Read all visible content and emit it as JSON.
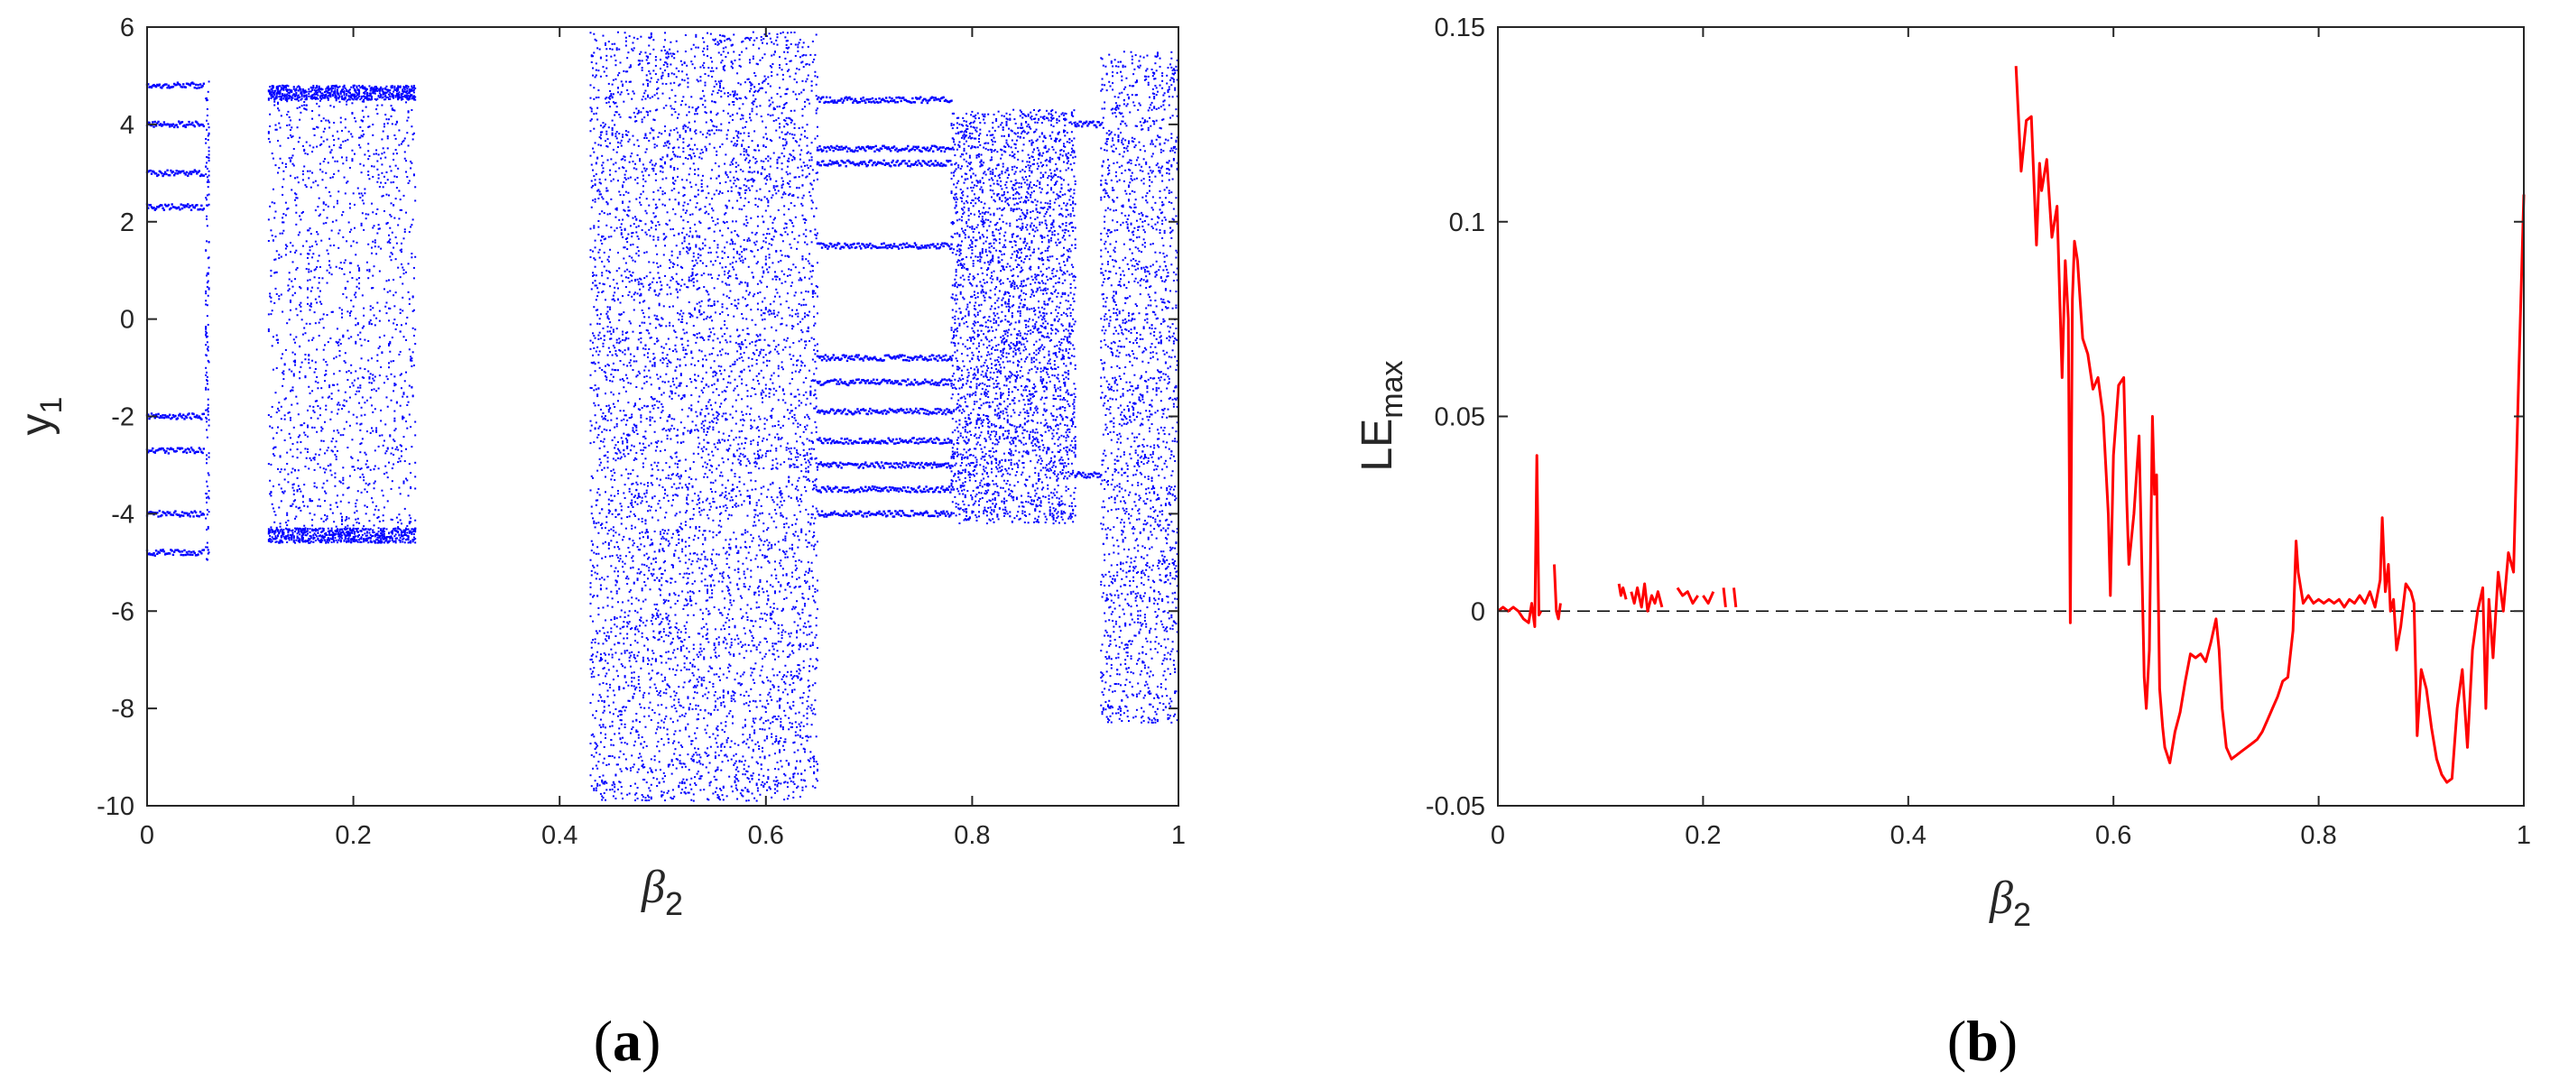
{
  "chart_data": [
    {
      "panel_label": "(a)",
      "type": "scatter",
      "xlabel": {
        "main": "β",
        "sub": "2"
      },
      "ylabel": {
        "main": "y",
        "sub": "1"
      },
      "xlim": [
        0,
        1
      ],
      "ylim": [
        -10,
        6
      ],
      "xticks": [
        0,
        0.2,
        0.4,
        0.6,
        0.8,
        1
      ],
      "xtick_labels": [
        "0",
        "0.2",
        "0.4",
        "0.6",
        "0.8",
        "1"
      ],
      "yticks": [
        6,
        4,
        2,
        0,
        -2,
        -4,
        -6,
        -8,
        -10
      ],
      "ytick_labels": [
        "6",
        "4",
        "2",
        "0",
        "-2",
        "-4",
        "-6",
        "-8",
        "-10"
      ],
      "grid": false,
      "color": "#0000ff",
      "description_regions": [
        {
          "x": [
            0.0,
            0.055
          ],
          "kind": "periodic",
          "branches": [
            4.8,
            4.0,
            3.0,
            2.3,
            -2.0,
            -2.7,
            -4.0,
            -4.8
          ]
        },
        {
          "x": [
            0.057,
            0.06
          ],
          "kind": "chaotic",
          "y": [
            -5.0,
            4.9
          ]
        },
        {
          "x": [
            0.118,
            0.26
          ],
          "kind": "banded",
          "y": [
            -4.6,
            4.8
          ]
        },
        {
          "x": [
            0.43,
            0.65
          ],
          "kind": "chaotic",
          "y": [
            -9.9,
            5.9
          ]
        },
        {
          "x": [
            0.65,
            0.78
          ],
          "kind": "periodic",
          "branches": [
            4.5,
            3.5,
            3.2,
            1.5,
            -0.8,
            -1.3,
            -1.9,
            -2.5,
            -3.0,
            -3.5,
            -4.0
          ]
        },
        {
          "x": [
            0.78,
            0.9
          ],
          "kind": "chaotic",
          "y": [
            -4.2,
            4.3
          ]
        },
        {
          "x": [
            0.9,
            0.925
          ],
          "kind": "periodic",
          "branches": [
            4.0,
            -3.2
          ]
        },
        {
          "x": [
            0.925,
            1.0
          ],
          "kind": "chaotic",
          "y": [
            -8.3,
            5.5
          ]
        }
      ]
    },
    {
      "panel_label": "(b)",
      "type": "line",
      "xlabel": {
        "main": "β",
        "sub": "2"
      },
      "ylabel": {
        "main": "LE",
        "sub": "max"
      },
      "xlim": [
        0,
        1
      ],
      "ylim": [
        -0.05,
        0.15
      ],
      "xticks": [
        0,
        0.2,
        0.4,
        0.6,
        0.8,
        1
      ],
      "xtick_labels": [
        "0",
        "0.2",
        "0.4",
        "0.6",
        "0.8",
        "1"
      ],
      "yticks": [
        0.15,
        0.1,
        0.05,
        0,
        -0.05
      ],
      "ytick_labels": [
        "0.15",
        "0.1",
        "0.05",
        "0",
        "-0.05"
      ],
      "grid": false,
      "color": "#ff0000",
      "reference_line": {
        "y": 0,
        "style": "dashed",
        "color": "#000000"
      },
      "segments": [
        {
          "x": [
            0.0,
            0.005,
            0.01,
            0.015,
            0.02,
            0.025,
            0.03,
            0.033,
            0.036,
            0.038,
            0.04,
            0.042
          ],
          "y": [
            0.0,
            0.001,
            0.0,
            0.001,
            0.0,
            -0.002,
            -0.003,
            0.002,
            -0.004,
            0.04,
            -0.001,
            0.0
          ]
        },
        {
          "x": [
            0.055,
            0.057,
            0.059,
            0.061
          ],
          "y": [
            0.012,
            0.0,
            -0.002,
            0.002
          ]
        },
        {
          "x": [
            0.118,
            0.12,
            0.122,
            0.125
          ],
          "y": [
            0.007,
            0.004,
            0.006,
            0.003
          ]
        },
        {
          "x": [
            0.13,
            0.133,
            0.136,
            0.14,
            0.143,
            0.146,
            0.15,
            0.153,
            0.156,
            0.16
          ],
          "y": [
            0.005,
            0.002,
            0.006,
            0.001,
            0.007,
            0.0,
            0.004,
            0.002,
            0.005,
            0.001
          ]
        },
        {
          "x": [
            0.175,
            0.18,
            0.185,
            0.19,
            0.195
          ],
          "y": [
            0.006,
            0.004,
            0.005,
            0.002,
            0.004
          ]
        },
        {
          "x": [
            0.2,
            0.205,
            0.21
          ],
          "y": [
            0.004,
            0.002,
            0.005
          ]
        },
        {
          "x": [
            0.22,
            0.222
          ],
          "y": [
            0.006,
            0.001
          ]
        },
        {
          "x": [
            0.23,
            0.232
          ],
          "y": [
            0.006,
            0.001
          ]
        },
        {
          "x": [
            0.505,
            0.51,
            0.515,
            0.52,
            0.525,
            0.528,
            0.53,
            0.535,
            0.54,
            0.545,
            0.55,
            0.553,
            0.556,
            0.558,
            0.56,
            0.562,
            0.565,
            0.57,
            0.575,
            0.58,
            0.585,
            0.59,
            0.595,
            0.597,
            0.6,
            0.605,
            0.61,
            0.613,
            0.615,
            0.62,
            0.625,
            0.63,
            0.632,
            0.635,
            0.638,
            0.64,
            0.642,
            0.645,
            0.648,
            0.65,
            0.655,
            0.66,
            0.665,
            0.67,
            0.675,
            0.68,
            0.685,
            0.69,
            0.695,
            0.7,
            0.703,
            0.706,
            0.71,
            0.715,
            0.72,
            0.725,
            0.73,
            0.735,
            0.74,
            0.745,
            0.75,
            0.755,
            0.76,
            0.765,
            0.77,
            0.775,
            0.778,
            0.78,
            0.785,
            0.79,
            0.795,
            0.8,
            0.805,
            0.81,
            0.815,
            0.82,
            0.825,
            0.83,
            0.835,
            0.84,
            0.845,
            0.85,
            0.855,
            0.86,
            0.862,
            0.865,
            0.868,
            0.87,
            0.873,
            0.876,
            0.88,
            0.885,
            0.89,
            0.893,
            0.896,
            0.9,
            0.905,
            0.91,
            0.915,
            0.92,
            0.925,
            0.93,
            0.935,
            0.94,
            0.945,
            0.95,
            0.955,
            0.96,
            0.963,
            0.966,
            0.97,
            0.975,
            0.98,
            0.985,
            0.99,
            0.995,
            1.0
          ],
          "y": [
            0.14,
            0.113,
            0.126,
            0.127,
            0.094,
            0.115,
            0.108,
            0.116,
            0.096,
            0.104,
            0.06,
            0.09,
            0.075,
            -0.003,
            0.08,
            0.095,
            0.09,
            0.07,
            0.066,
            0.057,
            0.06,
            0.05,
            0.025,
            0.004,
            0.04,
            0.058,
            0.06,
            0.028,
            0.012,
            0.025,
            0.045,
            -0.017,
            -0.025,
            -0.01,
            0.05,
            0.03,
            0.035,
            -0.02,
            -0.03,
            -0.035,
            -0.039,
            -0.031,
            -0.026,
            -0.018,
            -0.011,
            -0.012,
            -0.011,
            -0.013,
            -0.008,
            -0.002,
            -0.01,
            -0.025,
            -0.035,
            -0.038,
            -0.037,
            -0.036,
            -0.035,
            -0.034,
            -0.033,
            -0.031,
            -0.028,
            -0.025,
            -0.022,
            -0.018,
            -0.017,
            -0.005,
            0.018,
            0.01,
            0.002,
            0.004,
            0.002,
            0.003,
            0.002,
            0.003,
            0.002,
            0.003,
            0.001,
            0.003,
            0.002,
            0.004,
            0.002,
            0.005,
            0.001,
            0.008,
            0.024,
            0.005,
            0.012,
            0.0,
            0.003,
            -0.01,
            -0.004,
            0.007,
            0.005,
            0.002,
            -0.032,
            -0.015,
            -0.02,
            -0.03,
            -0.038,
            -0.042,
            -0.044,
            -0.043,
            -0.025,
            -0.015,
            -0.035,
            -0.01,
            0.0,
            0.006,
            -0.025,
            0.003,
            -0.012,
            0.01,
            0.0,
            0.015,
            0.01,
            0.06,
            0.107
          ]
        }
      ]
    }
  ]
}
